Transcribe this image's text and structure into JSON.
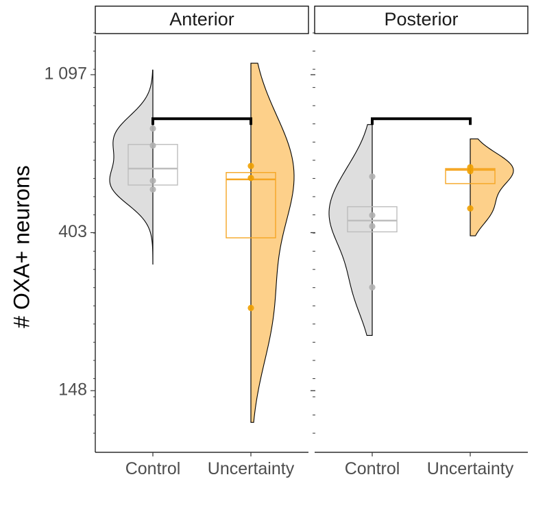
{
  "chart_data": {
    "type": "raincloud",
    "ylabel": "# OXA+ neurons",
    "y_scale": "log",
    "y_ticks": [
      148,
      403,
      1097
    ],
    "y_tick_labels": [
      "148",
      "403",
      "1 097"
    ],
    "ylim": [
      113,
      1430
    ],
    "categories": [
      "Control",
      "Uncertainty"
    ],
    "colors": {
      "Control": "#bdbdbd",
      "Uncertainty": "#f5a623"
    },
    "panels": [
      {
        "name": "Anterior",
        "groups": [
          {
            "name": "Control",
            "points": [
              780,
              700,
              560,
              530
            ],
            "box": {
              "q1": 545,
              "median": 605,
              "q3": 705
            },
            "density_range": [
              330,
              1130
            ]
          },
          {
            "name": "Uncertainty",
            "points": [
              615,
              570,
              250
            ],
            "box": {
              "q1": 390,
              "median": 565,
              "q3": 590
            },
            "density_range": [
              121,
              1180
            ]
          }
        ],
        "bracket": {
          "from": "Control",
          "to": "Uncertainty",
          "y": 830
        }
      },
      {
        "name": "Posterior",
        "groups": [
          {
            "name": "Control",
            "points": [
              575,
              450,
              420,
              285
            ],
            "box": {
              "q1": 405,
              "median": 435,
              "q3": 475
            },
            "density_range": [
              210,
              800
            ]
          },
          {
            "name": "Uncertainty",
            "points": [
              610,
              595,
              470
            ],
            "box": {
              "q1": 550,
              "median": 600,
              "q3": 605
            },
            "density_range": [
              395,
              730
            ]
          }
        ],
        "bracket": {
          "from": "Control",
          "to": "Uncertainty",
          "y": 830
        }
      }
    ]
  }
}
